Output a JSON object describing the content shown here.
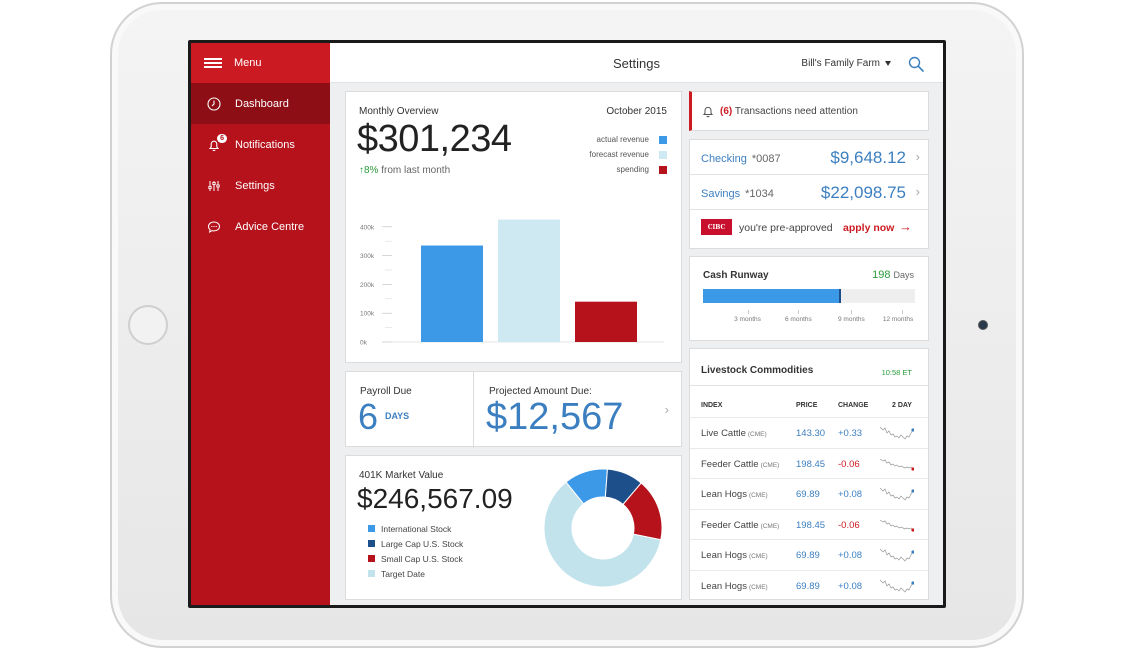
{
  "colors": {
    "brand_red": "#b5121b",
    "menu_red": "#cc1a22",
    "active_nav": "#8e0e15",
    "link_blue": "#3c7fc0",
    "positive_green": "#2a9d3a",
    "negative_red": "#cc1a22"
  },
  "sidebar": {
    "menu_label": "Menu",
    "items": [
      {
        "label": "Dashboard",
        "icon": "clock-icon",
        "active": true
      },
      {
        "label": "Notifications",
        "icon": "bell-icon",
        "badge": "6"
      },
      {
        "label": "Settings",
        "icon": "sliders-icon"
      },
      {
        "label": "Advice Centre",
        "icon": "chat-bubble-icon"
      }
    ]
  },
  "header": {
    "title": "Settings",
    "account_select": "Bill's Family Farm",
    "search_icon": "search-icon"
  },
  "monthly_overview": {
    "title": "Monthly Overview",
    "date": "October 2015",
    "amount": "$301,234",
    "change_arrow": "↑",
    "change_value": "8%",
    "change_text": "from last month",
    "legend": [
      {
        "label": "actual revenue",
        "color": "#3b99e8"
      },
      {
        "label": "forecast revenue",
        "color": "#cfe9f3"
      },
      {
        "label": "spending",
        "color": "#b5121b"
      }
    ]
  },
  "chart_data": {
    "type": "bar",
    "categories": [
      "actual revenue",
      "forecast revenue",
      "spending"
    ],
    "values": [
      335,
      425,
      140
    ],
    "colors": [
      "#3b99e8",
      "#cfe9f3",
      "#b5121b"
    ],
    "title": "Monthly Overview",
    "yticks": [
      "0k",
      "100k",
      "200k",
      "300k",
      "400k"
    ],
    "ylim": [
      0,
      500
    ],
    "grid": false
  },
  "payroll": {
    "label": "Payroll Due",
    "value": "6",
    "unit": "DAYS"
  },
  "projected": {
    "label": "Projected Amount Due:",
    "amount": "$12,567"
  },
  "retirement": {
    "title": "401K Market Value",
    "amount": "$246,567.09",
    "segments": [
      {
        "label": "International Stock",
        "color": "#3b99e8",
        "share": 12
      },
      {
        "label": "Large Cap U.S. Stock",
        "color": "#1d4f8a",
        "share": 10
      },
      {
        "label": "Small Cap U.S. Stock",
        "color": "#b5121b",
        "share": 17
      },
      {
        "label": "Target Date",
        "color": "#c2e3ec",
        "share": 61
      }
    ]
  },
  "alert": {
    "count": "(6)",
    "text": "Transactions need attention"
  },
  "accounts": [
    {
      "name": "Checking",
      "number": "*0087",
      "balance": "$9,648.12"
    },
    {
      "name": "Savings",
      "number": "*1034",
      "balance": "$22,098.75"
    }
  ],
  "offer": {
    "logo_text": "CIBC",
    "text": "you're pre-approved",
    "cta": "apply now",
    "arrow": "→"
  },
  "cash_runway": {
    "title": "Cash Runway",
    "value": "198",
    "unit": "Days",
    "fill_fraction": 0.65,
    "ticks": [
      "3 months",
      "6 months",
      "9 months",
      "12 months"
    ]
  },
  "livestock": {
    "title": "Livestock Commodities",
    "time": "10:58 ET",
    "headers": {
      "index": "INDEX",
      "price": "PRICE",
      "change": "CHANGE",
      "period": "2 DAY"
    },
    "rows": [
      {
        "name": "Live Cattle",
        "exchange": "(CME)",
        "price": "143.30",
        "change": "+0.33",
        "dir": "up"
      },
      {
        "name": "Feeder Cattle",
        "exchange": "(CME)",
        "price": "198.45",
        "change": "-0.06",
        "dir": "down"
      },
      {
        "name": "Lean Hogs",
        "exchange": "(CME)",
        "price": "69.89",
        "change": "+0.08",
        "dir": "up"
      },
      {
        "name": "Feeder Cattle",
        "exchange": "(CME)",
        "price": "198.45",
        "change": "-0.06",
        "dir": "down"
      },
      {
        "name": "Lean Hogs",
        "exchange": "(CME)",
        "price": "69.89",
        "change": "+0.08",
        "dir": "up"
      },
      {
        "name": "Lean Hogs",
        "exchange": "(CME)",
        "price": "69.89",
        "change": "+0.08",
        "dir": "up"
      }
    ]
  }
}
